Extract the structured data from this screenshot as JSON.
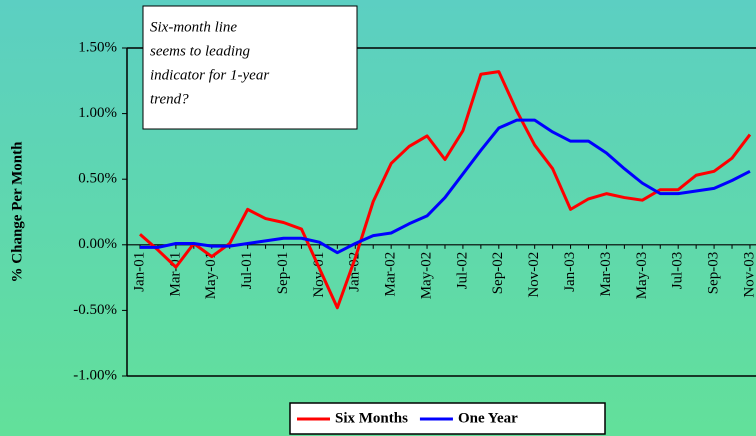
{
  "chart_data": {
    "type": "line",
    "ylabel": "% Change Per Month",
    "annotation": [
      "Six-month line",
      "seems to leading",
      "indicator for 1-year",
      "trend?"
    ],
    "categories": [
      "Jan-01",
      null,
      "Mar-01",
      null,
      "May-01",
      null,
      "Jul-01",
      null,
      "Sep-01",
      null,
      "Nov-01",
      null,
      "Jan-02",
      null,
      "Mar-02",
      null,
      "May-02",
      null,
      "Jul-02",
      null,
      "Sep-02",
      null,
      "Nov-02",
      null,
      "Jan-03",
      null,
      "Mar-03",
      null,
      "May-03",
      null,
      "Jul-03",
      null,
      "Sep-03",
      null,
      "Nov-03"
    ],
    "series": [
      {
        "name": "Six Months",
        "color": "#ff0000",
        "values": [
          0.08,
          -0.04,
          -0.17,
          0.01,
          -0.09,
          0.01,
          0.27,
          0.2,
          0.17,
          0.12,
          -0.18,
          -0.48,
          -0.1,
          0.33,
          0.62,
          0.75,
          0.83,
          0.65,
          0.87,
          1.3,
          1.32,
          1.02,
          0.76,
          0.58,
          0.27,
          0.35,
          0.39,
          0.36,
          0.34,
          0.42,
          0.42,
          0.53,
          0.56,
          0.66,
          0.84
        ]
      },
      {
        "name": "One Year",
        "color": "#0000ff",
        "values": [
          -0.02,
          -0.02,
          0.01,
          0.01,
          -0.01,
          -0.01,
          0.01,
          0.03,
          0.05,
          0.05,
          0.02,
          -0.06,
          0.01,
          0.07,
          0.09,
          0.16,
          0.22,
          0.36,
          0.54,
          0.72,
          0.89,
          0.95,
          0.95,
          0.86,
          0.79,
          0.79,
          0.7,
          0.58,
          0.47,
          0.39,
          0.39,
          0.41,
          0.43,
          0.49,
          0.56
        ]
      }
    ],
    "ylim": [
      -1,
      1.5
    ],
    "yticks": [
      {
        "value": -1,
        "label": "-1.00%"
      },
      {
        "value": -0.5,
        "label": "-0.50%"
      },
      {
        "value": 0,
        "label": "0.00%"
      },
      {
        "value": 0.5,
        "label": "0.50%"
      },
      {
        "value": 1,
        "label": "1.00%"
      },
      {
        "value": 1.5,
        "label": "1.50%"
      }
    ],
    "legend": "bottom"
  }
}
